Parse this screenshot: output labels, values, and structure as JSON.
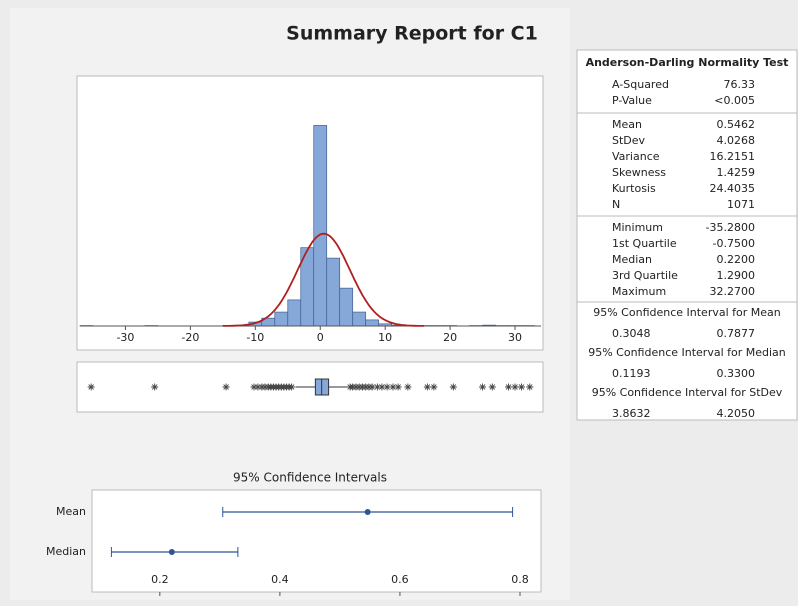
{
  "title": "Summary Report for C1",
  "chart_data": [
    {
      "type": "histogram",
      "bins": [
        -37,
        -35,
        -33,
        -31,
        -29,
        -27,
        -25,
        -23,
        -21,
        -19,
        -17,
        -15,
        -13,
        -11,
        -9,
        -7,
        -5,
        -3,
        -1,
        1,
        3,
        5,
        7,
        9,
        11,
        13,
        15,
        17,
        19,
        21,
        23,
        25,
        27,
        29,
        31,
        33
      ],
      "counts": [
        1,
        0,
        0,
        0,
        0,
        1,
        0,
        0,
        0,
        0,
        0,
        1,
        2,
        9,
        18,
        32,
        60,
        180,
        461,
        156,
        87,
        32,
        14,
        5,
        2,
        1,
        1,
        1,
        1,
        0,
        1,
        2,
        1,
        1,
        1
      ],
      "color": "#86a8d8",
      "edge_color": "#3e5f8f",
      "curve_color": "#b02020",
      "xlim": [
        -37,
        34
      ],
      "xticks": [
        -30,
        -20,
        -10,
        0,
        10,
        20,
        30
      ],
      "ylim": [
        0,
        570
      ]
    },
    {
      "type": "boxplot",
      "q1": -0.75,
      "median": 0.22,
      "q3": 1.29,
      "whisker_low": -3.8,
      "whisker_high": 4.3,
      "outliers": [
        -35.28,
        -25.5,
        -14.5,
        -10.2,
        -9.6,
        -9.0,
        -8.5,
        -8.0,
        -7.6,
        -7.2,
        -6.8,
        -6.4,
        -6.0,
        -5.6,
        -5.2,
        -4.8,
        -4.4,
        4.6,
        5.0,
        5.5,
        6.0,
        6.5,
        7.0,
        7.5,
        8.0,
        8.8,
        9.5,
        10.3,
        11.2,
        12.0,
        13.5,
        16.5,
        17.5,
        20.5,
        25.0,
        26.5,
        29.0,
        30.0,
        31.0,
        32.27
      ],
      "color": "#86a8d8",
      "xlim": [
        -37,
        34
      ]
    },
    {
      "type": "interval",
      "title": "95% Confidence Intervals",
      "categories": [
        "Mean",
        "Median"
      ],
      "values": [
        0.5462,
        0.22
      ],
      "lower": [
        0.3048,
        0.1193
      ],
      "upper": [
        0.7877,
        0.33
      ],
      "color": "#2f5597",
      "xlim": [
        0.087,
        0.835
      ],
      "xticks": [
        0.2,
        0.4,
        0.6,
        0.8
      ]
    }
  ],
  "stats": {
    "normality": {
      "title": "Anderson-Darling Normality Test",
      "rows": [
        [
          "A-Squared",
          "76.33"
        ],
        [
          "P-Value",
          "<0.005"
        ]
      ]
    },
    "moments": [
      [
        "Mean",
        "0.5462"
      ],
      [
        "StDev",
        "4.0268"
      ],
      [
        "Variance",
        "16.2151"
      ],
      [
        "Skewness",
        "1.4259"
      ],
      [
        "Kurtosis",
        "24.4035"
      ],
      [
        "N",
        "1071"
      ]
    ],
    "quantiles": [
      [
        "Minimum",
        "-35.2800"
      ],
      [
        "1st Quartile",
        "-0.7500"
      ],
      [
        "Median",
        "0.2200"
      ],
      [
        "3rd Quartile",
        "1.2900"
      ],
      [
        "Maximum",
        "32.2700"
      ]
    ],
    "intervals": [
      {
        "title": "95% Confidence Interval for Mean",
        "values": [
          "0.3048",
          "0.7877"
        ]
      },
      {
        "title": "95% Confidence Interval for Median",
        "values": [
          "0.1193",
          "0.3300"
        ]
      },
      {
        "title": "95% Confidence Interval for StDev",
        "values": [
          "3.8632",
          "4.2050"
        ]
      }
    ]
  }
}
